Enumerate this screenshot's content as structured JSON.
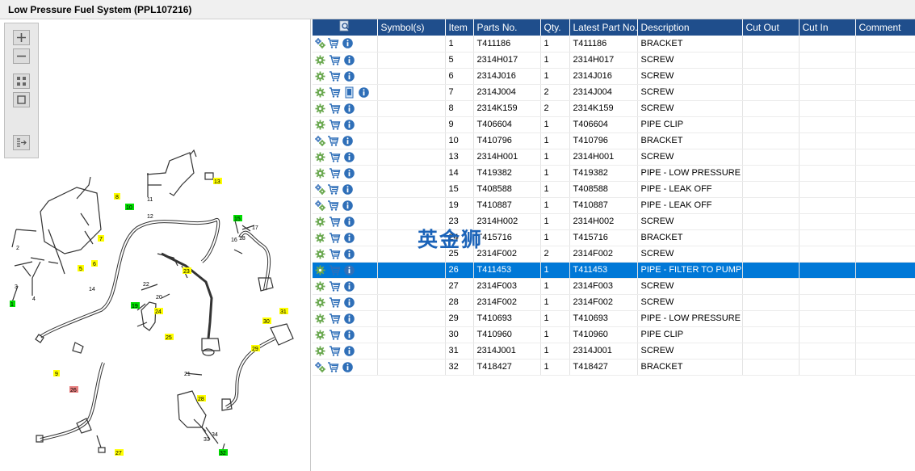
{
  "window": {
    "title": "Low Pressure Fuel System (PPL107216)"
  },
  "toolbar": {
    "icons": [
      "zoom-in-icon",
      "zoom-out-icon",
      "fit-all-icon",
      "actual-size-icon",
      "export-list-icon"
    ]
  },
  "diagram": {
    "callouts": [
      {
        "label": "1",
        "color": "green"
      },
      {
        "label": "2",
        "color": "none"
      },
      {
        "label": "3",
        "color": "none"
      },
      {
        "label": "4",
        "color": "none"
      },
      {
        "label": "5",
        "color": "yellow"
      },
      {
        "label": "6",
        "color": "yellow"
      },
      {
        "label": "7",
        "color": "yellow"
      },
      {
        "label": "8",
        "color": "yellow"
      },
      {
        "label": "9",
        "color": "yellow"
      },
      {
        "label": "10",
        "color": "green"
      },
      {
        "label": "11",
        "color": "none"
      },
      {
        "label": "12",
        "color": "none"
      },
      {
        "label": "13",
        "color": "yellow"
      },
      {
        "label": "14",
        "color": "none"
      },
      {
        "label": "15",
        "color": "green"
      },
      {
        "label": "16",
        "color": "none"
      },
      {
        "label": "17",
        "color": "none"
      },
      {
        "label": "18",
        "color": "none"
      },
      {
        "label": "19",
        "color": "green"
      },
      {
        "label": "20",
        "color": "none"
      },
      {
        "label": "21",
        "color": "none"
      },
      {
        "label": "22",
        "color": "none"
      },
      {
        "label": "23",
        "color": "yellow"
      },
      {
        "label": "24",
        "color": "yellow"
      },
      {
        "label": "25",
        "color": "yellow"
      },
      {
        "label": "26",
        "color": "red"
      },
      {
        "label": "27",
        "color": "yellow"
      },
      {
        "label": "28",
        "color": "yellow"
      },
      {
        "label": "29",
        "color": "yellow"
      },
      {
        "label": "30",
        "color": "yellow"
      },
      {
        "label": "31",
        "color": "yellow"
      },
      {
        "label": "32",
        "color": "green"
      },
      {
        "label": "33",
        "color": "none"
      },
      {
        "label": "34",
        "color": "none"
      }
    ]
  },
  "table": {
    "headers": {
      "locate": "",
      "symbols": "Symbol(s)",
      "item": "Item",
      "parts_no": "Parts No.",
      "qty": "Qty.",
      "latest": "Latest Part No.",
      "description": "Description",
      "cut_out": "Cut Out",
      "cut_in": "Cut In",
      "comment": "Comment"
    },
    "rows": [
      {
        "item": "1",
        "parts_no": "T411186",
        "qty": "1",
        "latest": "T411186",
        "description": "BRACKET",
        "symbols": [
          "gears-icon",
          "cart-icon",
          "info-icon"
        ]
      },
      {
        "item": "5",
        "parts_no": "2314H017",
        "qty": "1",
        "latest": "2314H017",
        "description": "SCREW",
        "symbols": [
          "gear-icon",
          "cart-icon",
          "info-icon"
        ]
      },
      {
        "item": "6",
        "parts_no": "2314J016",
        "qty": "1",
        "latest": "2314J016",
        "description": "SCREW",
        "symbols": [
          "gear-icon",
          "cart-icon",
          "info-icon"
        ]
      },
      {
        "item": "7",
        "parts_no": "2314J004",
        "qty": "2",
        "latest": "2314J004",
        "description": "SCREW",
        "symbols": [
          "gear-icon",
          "cart-icon",
          "document-icon",
          "info-icon"
        ]
      },
      {
        "item": "8",
        "parts_no": "2314K159",
        "qty": "2",
        "latest": "2314K159",
        "description": "SCREW",
        "symbols": [
          "gear-icon",
          "cart-icon",
          "info-icon"
        ]
      },
      {
        "item": "9",
        "parts_no": "T406604",
        "qty": "1",
        "latest": "T406604",
        "description": "PIPE CLIP",
        "symbols": [
          "gear-icon",
          "cart-icon",
          "info-icon"
        ]
      },
      {
        "item": "10",
        "parts_no": "T410796",
        "qty": "1",
        "latest": "T410796",
        "description": "BRACKET",
        "symbols": [
          "gears-icon",
          "cart-icon",
          "info-icon"
        ]
      },
      {
        "item": "13",
        "parts_no": "2314H001",
        "qty": "1",
        "latest": "2314H001",
        "description": "SCREW",
        "symbols": [
          "gear-icon",
          "cart-icon",
          "info-icon"
        ]
      },
      {
        "item": "14",
        "parts_no": "T419382",
        "qty": "1",
        "latest": "T419382",
        "description": "PIPE - LOW PRESSURE FU",
        "symbols": [
          "gear-icon",
          "cart-icon",
          "info-icon"
        ]
      },
      {
        "item": "15",
        "parts_no": "T408588",
        "qty": "1",
        "latest": "T408588",
        "description": "PIPE - LEAK OFF",
        "symbols": [
          "gears-icon",
          "cart-icon",
          "info-icon"
        ]
      },
      {
        "item": "19",
        "parts_no": "T410887",
        "qty": "1",
        "latest": "T410887",
        "description": "PIPE - LEAK OFF",
        "symbols": [
          "gears-icon",
          "cart-icon",
          "info-icon"
        ]
      },
      {
        "item": "23",
        "parts_no": "2314H002",
        "qty": "1",
        "latest": "2314H002",
        "description": "SCREW",
        "symbols": [
          "gear-icon",
          "cart-icon",
          "info-icon"
        ]
      },
      {
        "item": "24",
        "parts_no": "T415716",
        "qty": "1",
        "latest": "T415716",
        "description": "BRACKET",
        "symbols": [
          "gear-icon",
          "cart-icon",
          "info-icon"
        ]
      },
      {
        "item": "25",
        "parts_no": "2314F002",
        "qty": "2",
        "latest": "2314F002",
        "description": "SCREW",
        "symbols": [
          "gear-icon",
          "cart-icon",
          "info-icon"
        ]
      },
      {
        "item": "26",
        "parts_no": "T411453",
        "qty": "1",
        "latest": "T411453",
        "description": "PIPE - FILTER TO PUMP",
        "symbols": [
          "gear-icon",
          "cart-icon",
          "info-icon"
        ],
        "selected": true
      },
      {
        "item": "27",
        "parts_no": "2314F003",
        "qty": "1",
        "latest": "2314F003",
        "description": "SCREW",
        "symbols": [
          "gear-icon",
          "cart-icon",
          "info-icon"
        ]
      },
      {
        "item": "28",
        "parts_no": "2314F002",
        "qty": "1",
        "latest": "2314F002",
        "description": "SCREW",
        "symbols": [
          "gear-icon",
          "cart-icon",
          "info-icon"
        ]
      },
      {
        "item": "29",
        "parts_no": "T410693",
        "qty": "1",
        "latest": "T410693",
        "description": "PIPE - LOW PRESSURE FU",
        "symbols": [
          "gear-icon",
          "cart-icon",
          "info-icon"
        ]
      },
      {
        "item": "30",
        "parts_no": "T410960",
        "qty": "1",
        "latest": "T410960",
        "description": "PIPE CLIP",
        "symbols": [
          "gear-icon",
          "cart-icon",
          "info-icon"
        ]
      },
      {
        "item": "31",
        "parts_no": "2314J001",
        "qty": "1",
        "latest": "2314J001",
        "description": "SCREW",
        "symbols": [
          "gear-icon",
          "cart-icon",
          "info-icon"
        ]
      },
      {
        "item": "32",
        "parts_no": "T418427",
        "qty": "1",
        "latest": "T418427",
        "description": "BRACKET",
        "symbols": [
          "gears-icon",
          "cart-icon",
          "info-icon"
        ]
      }
    ]
  },
  "watermark": {
    "text": "英金狮"
  },
  "colors": {
    "header_bg": "#1f4e8c",
    "selected_row": "#0078d7",
    "callout_yellow": "#ffff00",
    "callout_green": "#00dd00",
    "callout_red": "#e88080"
  }
}
